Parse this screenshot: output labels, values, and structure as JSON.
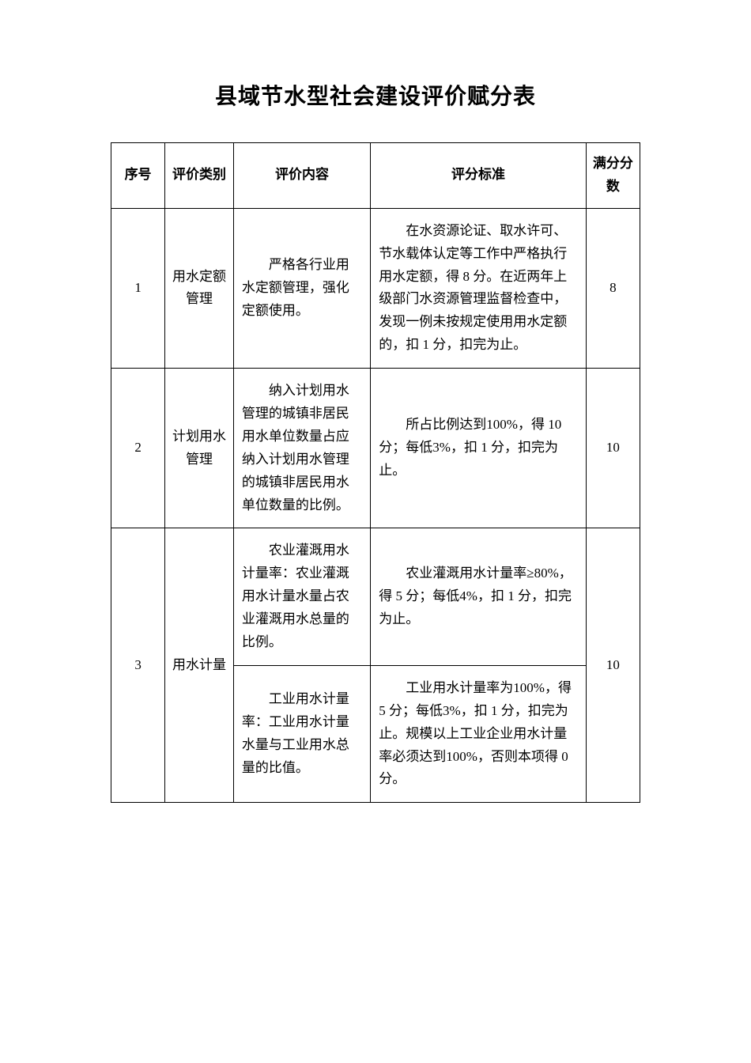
{
  "title": "县域节水型社会建设评价赋分表",
  "table": {
    "headers": {
      "seq": "序号",
      "category": "评价类别",
      "content": "评价内容",
      "criteria": "评分标准",
      "score": "满分分数"
    },
    "rows": [
      {
        "seq": "1",
        "category": "用水定额管理",
        "content": "严格各行业用水定额管理，强化定额使用。",
        "criteria": "在水资源论证、取水许可、节水载体认定等工作中严格执行用水定额，得 8 分。在近两年上级部门水资源管理监督检查中，发现一例未按规定使用用水定额的，扣 1 分，扣完为止。",
        "score": "8"
      },
      {
        "seq": "2",
        "category": "计划用水管理",
        "content": "纳入计划用水管理的城镇非居民用水单位数量占应纳入计划用水管理的城镇非居民用水单位数量的比例。",
        "criteria": "所占比例达到100%，得 10 分；每低3%，扣 1 分，扣完为止。",
        "score": "10"
      },
      {
        "seq": "3",
        "category": "用水计量",
        "content_a": "农业灌溉用水计量率：农业灌溉用水计量水量占农业灌溉用水总量的比例。",
        "criteria_a": "农业灌溉用水计量率≥80%，得 5 分；每低4%，扣 1 分，扣完为止。",
        "content_b": "工业用水计量率：工业用水计量水量与工业用水总量的比值。",
        "criteria_b": "工业用水计量率为100%，得 5 分；每低3%，扣 1 分，扣完为止。规模以上工业企业用水计量率必须达到100%，否则本项得 0分。",
        "score": "10"
      }
    ]
  }
}
